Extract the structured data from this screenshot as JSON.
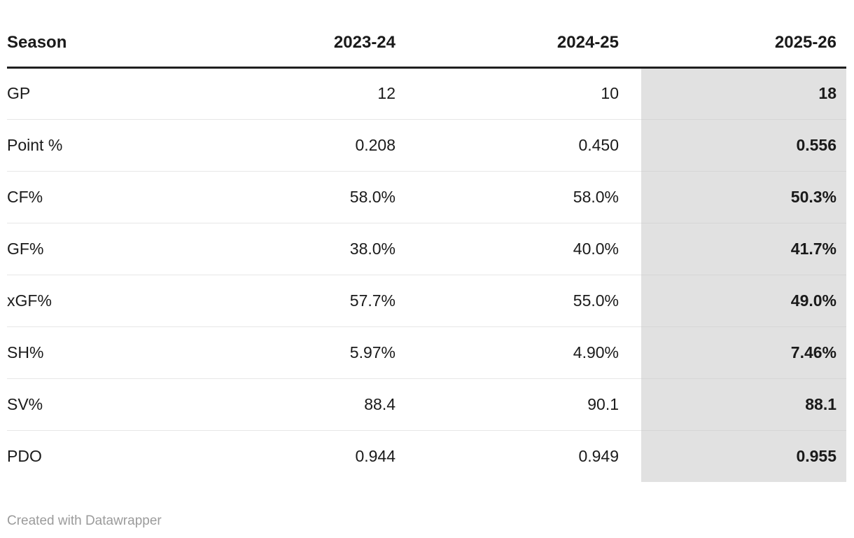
{
  "chart_data": {
    "type": "table",
    "title": "",
    "columns": [
      "Season",
      "2023-24",
      "2024-25",
      "2025-26"
    ],
    "rows": [
      {
        "label": "GP",
        "values": [
          "12",
          "10",
          "18"
        ]
      },
      {
        "label": "Point %",
        "values": [
          "0.208",
          "0.450",
          "0.556"
        ]
      },
      {
        "label": "CF%",
        "values": [
          "58.0%",
          "58.0%",
          "50.3%"
        ]
      },
      {
        "label": "GF%",
        "values": [
          "38.0%",
          "40.0%",
          "41.7%"
        ]
      },
      {
        "label": "xGF%",
        "values": [
          "57.7%",
          "55.0%",
          "49.0%"
        ]
      },
      {
        "label": "SH%",
        "values": [
          "5.97%",
          "4.90%",
          "7.46%"
        ]
      },
      {
        "label": "SV%",
        "values": [
          "88.4",
          "90.1",
          "88.1"
        ]
      },
      {
        "label": "PDO",
        "values": [
          "0.944",
          "0.949",
          "0.955"
        ]
      }
    ],
    "highlighted_column": "2025-26",
    "layout_hints": {
      "numeric_alignment": "right",
      "highlight_style": "gray background, bold values",
      "grid": "horizontal row dividers only"
    }
  },
  "footer": {
    "attribution": "Created with Datawrapper"
  },
  "colors": {
    "text": "#1a1a1a",
    "header_rule": "#1f1f1f",
    "row_divider": "#e7e7e7",
    "highlight_column_bg": "#e1e1e1",
    "footer_text": "#9b9b9b",
    "background": "#ffffff"
  }
}
